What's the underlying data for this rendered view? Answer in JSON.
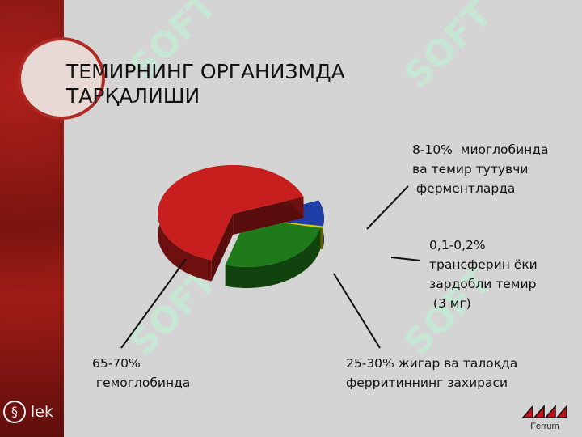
{
  "slide": {
    "title_line1": "ТЕМИРНИНГ ОРГАНИЗМДА",
    "title_line2": "ТАРҚАЛИШИ"
  },
  "labels": {
    "myoglobin": "8-10%  миоглобинда\nва темир тутувчи\n ферментларда",
    "transferrin": "0,1-0,2%\nтрансферин ёки\nзардобли темир\n (3 мг)",
    "ferritin": "25-30% жигар ва талоқда\nферритиннинг захираси",
    "hemoglobin": "65-70%\n гемоглобинда"
  },
  "footer": {
    "left_logo": "lek",
    "right_logo": "Ferrum"
  },
  "chart_data": {
    "type": "pie",
    "style": "3d-exploded",
    "slices": [
      {
        "label": "8-10%  миоглобинда ва темир тутувчи ферментларда",
        "range": [
          8,
          10
        ],
        "color": "#1f3fa8"
      },
      {
        "label": "0,1-0,2% трансферин ёки зардобли темир (3 мг)",
        "range": [
          0.1,
          0.2
        ],
        "color": "#d8d400"
      },
      {
        "label": "25-30% жигар ва талоқда ферритиннинг захираси",
        "range": [
          25,
          30
        ],
        "color": "#1f7a1a"
      },
      {
        "label": "65-70% гемоглобинда",
        "range": [
          65,
          70
        ],
        "color": "#c81e1e"
      }
    ]
  }
}
